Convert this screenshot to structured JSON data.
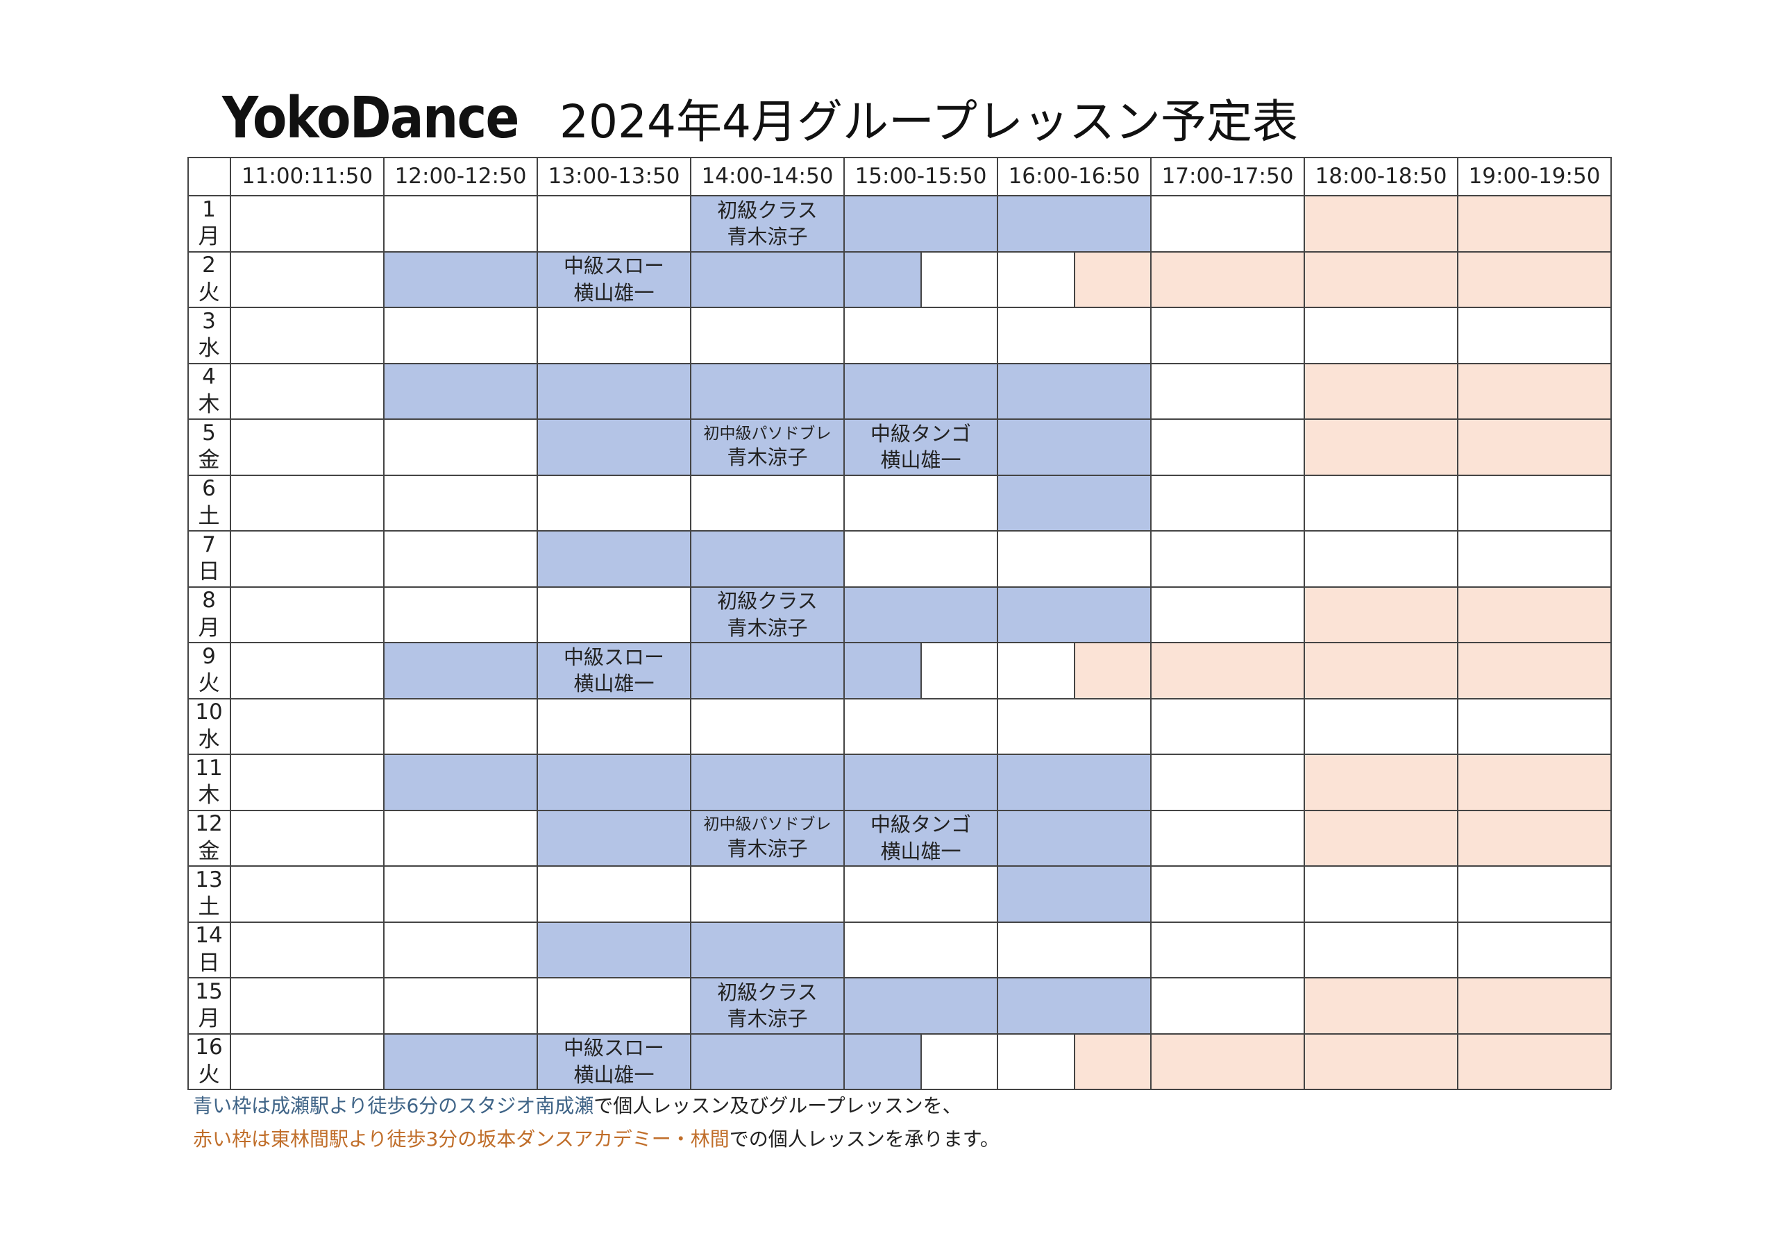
{
  "header": {
    "brand": "YokoDance",
    "title": "2024年4月グループレッスン予定表"
  },
  "colors": {
    "blue": "#b4c4e6",
    "peach": "#fbe3d6",
    "grid": "#444444"
  },
  "timetable": {
    "time_slots": [
      "11:00:11:50",
      "12:00-12:50",
      "13:00-13:50",
      "14:00-14:50",
      "15:00-15:50",
      "16:00-16:50",
      "17:00-17:50",
      "18:00-18:50",
      "19:00-19:50"
    ],
    "days": [
      {
        "num": "1",
        "wd": "月"
      },
      {
        "num": "2",
        "wd": "火"
      },
      {
        "num": "3",
        "wd": "水"
      },
      {
        "num": "4",
        "wd": "木"
      },
      {
        "num": "5",
        "wd": "金"
      },
      {
        "num": "6",
        "wd": "土"
      },
      {
        "num": "7",
        "wd": "日"
      },
      {
        "num": "8",
        "wd": "月"
      },
      {
        "num": "9",
        "wd": "火"
      },
      {
        "num": "10",
        "wd": "水"
      },
      {
        "num": "11",
        "wd": "木"
      },
      {
        "num": "12",
        "wd": "金"
      },
      {
        "num": "13",
        "wd": "土"
      },
      {
        "num": "14",
        "wd": "日"
      },
      {
        "num": "15",
        "wd": "月"
      },
      {
        "num": "16",
        "wd": "火"
      }
    ],
    "day_patterns": {
      "mon": [
        {
          "from": 3,
          "to": 6,
          "color": "blue"
        },
        {
          "from": 7,
          "to": 9,
          "color": "peach"
        }
      ],
      "tue": [
        {
          "from": 1,
          "to": 4.5,
          "color": "blue"
        },
        {
          "from": 5.5,
          "to": 9,
          "color": "peach"
        }
      ],
      "wed": [],
      "thu": [
        {
          "from": 1,
          "to": 6,
          "color": "blue"
        },
        {
          "from": 7,
          "to": 9,
          "color": "peach"
        }
      ],
      "fri": [
        {
          "from": 2,
          "to": 6,
          "color": "blue"
        },
        {
          "from": 7,
          "to": 9,
          "color": "peach"
        }
      ],
      "sat": [
        {
          "from": 5,
          "to": 6,
          "color": "blue"
        }
      ],
      "sun": [
        {
          "from": 2,
          "to": 4,
          "color": "blue"
        }
      ]
    },
    "day_types": [
      "mon",
      "tue",
      "wed",
      "thu",
      "fri",
      "sat",
      "sun",
      "mon",
      "tue",
      "wed",
      "thu",
      "fri",
      "sat",
      "sun",
      "mon",
      "tue"
    ],
    "events": [
      {
        "day": 0,
        "slot": 3,
        "name": "初級クラス",
        "teacher": "青木涼子"
      },
      {
        "day": 1,
        "slot": 2,
        "name": "中級スロー",
        "teacher": "横山雄一"
      },
      {
        "day": 4,
        "slot": 3,
        "name": "初中級パソドブレ",
        "teacher": "青木涼子",
        "small": true
      },
      {
        "day": 4,
        "slot": 4,
        "name": "中級タンゴ",
        "teacher": "横山雄一"
      },
      {
        "day": 7,
        "slot": 3,
        "name": "初級クラス",
        "teacher": "青木涼子"
      },
      {
        "day": 8,
        "slot": 2,
        "name": "中級スロー",
        "teacher": "横山雄一"
      },
      {
        "day": 11,
        "slot": 3,
        "name": "初中級パソドブレ",
        "teacher": "青木涼子",
        "small": true
      },
      {
        "day": 11,
        "slot": 4,
        "name": "中級タンゴ",
        "teacher": "横山雄一"
      },
      {
        "day": 14,
        "slot": 3,
        "name": "初級クラス",
        "teacher": "青木涼子"
      },
      {
        "day": 15,
        "slot": 2,
        "name": "中級スロー",
        "teacher": "横山雄一"
      }
    ]
  },
  "footer": {
    "line1_colored": "青い枠は成瀬駅より徒歩6分のスタジオ南成瀬",
    "line1_rest": "で個人レッスン及びグループレッスンを、",
    "line2_colored": "赤い枠は東林間駅より徒歩3分の坂本ダンスアカデミー・林間",
    "line2_rest": "での個人レッスンを承ります。"
  }
}
